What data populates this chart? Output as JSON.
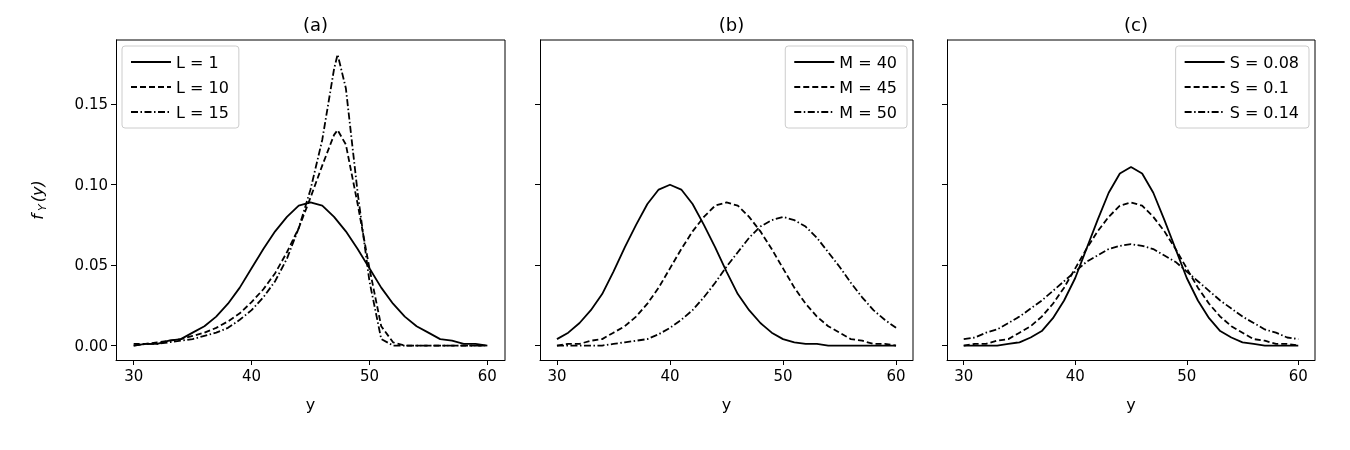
{
  "chart_data": [
    {
      "type": "line",
      "title": "(a)",
      "xlabel": "y",
      "ylabel": "f$_{Y}$(y)",
      "xlim": [
        28.5,
        61.5
      ],
      "xticks": [
        30,
        40,
        50,
        60
      ],
      "ylim": [
        -0.009,
        0.19
      ],
      "yticks": [
        {
          "value": 0,
          "label": "0.00"
        },
        {
          "value": 0.05,
          "label": "0.05"
        },
        {
          "value": 0.1,
          "label": "0.10"
        },
        {
          "value": 0.15,
          "label": "0.15"
        }
      ],
      "grid": false,
      "legend": "top left",
      "marker": "none",
      "x": [
        30,
        31,
        32,
        33,
        34,
        35,
        36,
        37,
        38,
        39,
        40,
        41,
        42,
        43,
        44,
        45,
        46,
        47,
        48,
        49,
        50,
        51,
        52,
        53,
        54,
        55,
        56,
        57,
        58,
        59,
        60
      ],
      "series": [
        {
          "name": "L = 1",
          "color": "#000000",
          "line_style": "solid",
          "values": [
            0.0,
            0.001,
            0.001,
            0.003,
            0.004,
            0.008,
            0.012,
            0.018,
            0.026,
            0.036,
            0.048,
            0.06,
            0.071,
            0.08,
            0.087,
            0.089,
            0.087,
            0.08,
            0.071,
            0.06,
            0.048,
            0.036,
            0.026,
            0.018,
            0.012,
            0.008,
            0.004,
            0.003,
            0.001,
            0.001,
            0.0
          ]
        },
        {
          "name": "L = 10",
          "color": "#000000",
          "line_style": "dashed",
          "x": [
            30,
            31,
            32,
            33,
            34,
            35,
            36,
            37,
            38,
            39,
            40,
            41,
            42,
            43,
            44,
            45,
            46,
            47,
            47.3,
            48,
            49,
            50,
            51,
            52,
            53,
            54,
            55,
            56,
            57,
            58,
            59,
            60
          ],
          "values": [
            0.001,
            0.001,
            0.002,
            0.003,
            0.004,
            0.006,
            0.008,
            0.011,
            0.015,
            0.02,
            0.027,
            0.035,
            0.045,
            0.058,
            0.073,
            0.092,
            0.112,
            0.131,
            0.134,
            0.125,
            0.088,
            0.048,
            0.012,
            0.002,
            0.0,
            0.0,
            0.0,
            0.0,
            0.0,
            0.0,
            0.0,
            0.0
          ]
        },
        {
          "name": "L = 15",
          "color": "#000000",
          "line_style": "dashdot",
          "x": [
            30,
            31,
            32,
            33,
            34,
            35,
            36,
            37,
            38,
            39,
            40,
            41,
            42,
            43,
            44,
            45,
            46,
            47,
            47.3,
            48,
            49,
            50,
            51,
            52,
            53,
            54,
            55,
            56,
            57,
            58,
            59,
            60
          ],
          "values": [
            0.0,
            0.001,
            0.001,
            0.002,
            0.003,
            0.004,
            0.006,
            0.008,
            0.011,
            0.016,
            0.022,
            0.03,
            0.04,
            0.054,
            0.073,
            0.097,
            0.128,
            0.172,
            0.181,
            0.16,
            0.095,
            0.04,
            0.004,
            0.0,
            0.0,
            0.0,
            0.0,
            0.0,
            0.0,
            0.0,
            0.0,
            0.0
          ]
        }
      ]
    },
    {
      "type": "line",
      "title": "(b)",
      "xlabel": "y",
      "xlim": [
        28.5,
        61.5
      ],
      "xticks": [
        30,
        40,
        50,
        60
      ],
      "ylim": [
        -0.009,
        0.19
      ],
      "yticks": [
        {
          "value": 0,
          "label": null
        },
        {
          "value": 0.05,
          "label": null
        },
        {
          "value": 0.1,
          "label": null
        },
        {
          "value": 0.15,
          "label": null
        }
      ],
      "tick_labels": "x",
      "grid": false,
      "legend": "top right",
      "marker": "none",
      "x": [
        30,
        31,
        32,
        33,
        34,
        35,
        36,
        37,
        38,
        39,
        40,
        41,
        42,
        43,
        44,
        45,
        46,
        47,
        48,
        49,
        50,
        51,
        52,
        53,
        54,
        55,
        56,
        57,
        58,
        59,
        60
      ],
      "series": [
        {
          "name": "M = 40",
          "color": "#000000",
          "line_style": "solid",
          "values": [
            0.004,
            0.008,
            0.014,
            0.022,
            0.032,
            0.046,
            0.061,
            0.075,
            0.088,
            0.097,
            0.1,
            0.097,
            0.088,
            0.075,
            0.061,
            0.046,
            0.032,
            0.022,
            0.014,
            0.008,
            0.004,
            0.002,
            0.001,
            0.001,
            0.0,
            0.0,
            0.0,
            0.0,
            0.0,
            0.0,
            0.0
          ]
        },
        {
          "name": "M = 45",
          "color": "#000000",
          "line_style": "dashed",
          "values": [
            0.0,
            0.001,
            0.001,
            0.003,
            0.004,
            0.008,
            0.012,
            0.018,
            0.026,
            0.036,
            0.048,
            0.06,
            0.071,
            0.08,
            0.087,
            0.089,
            0.087,
            0.08,
            0.071,
            0.06,
            0.048,
            0.036,
            0.026,
            0.018,
            0.012,
            0.008,
            0.004,
            0.003,
            0.001,
            0.001,
            0.0
          ]
        },
        {
          "name": "M = 50",
          "color": "#000000",
          "line_style": "dashdot",
          "values": [
            0.0,
            0.0,
            0.0,
            0.0,
            0.0,
            0.001,
            0.002,
            0.003,
            0.004,
            0.007,
            0.011,
            0.016,
            0.022,
            0.03,
            0.039,
            0.049,
            0.058,
            0.067,
            0.074,
            0.078,
            0.08,
            0.078,
            0.074,
            0.067,
            0.058,
            0.049,
            0.039,
            0.03,
            0.022,
            0.016,
            0.011
          ]
        }
      ]
    },
    {
      "type": "line",
      "title": "(c)",
      "xlabel": "y",
      "xlim": [
        28.5,
        61.5
      ],
      "xticks": [
        30,
        40,
        50,
        60
      ],
      "ylim": [
        -0.009,
        0.19
      ],
      "yticks": [
        {
          "value": 0,
          "label": null
        },
        {
          "value": 0.05,
          "label": null
        },
        {
          "value": 0.1,
          "label": null
        },
        {
          "value": 0.15,
          "label": null
        }
      ],
      "tick_labels": "x",
      "grid": false,
      "legend": "top right",
      "marker": "none",
      "x": [
        30,
        31,
        32,
        33,
        34,
        35,
        36,
        37,
        38,
        39,
        40,
        41,
        42,
        43,
        44,
        45,
        46,
        47,
        48,
        49,
        50,
        51,
        52,
        53,
        54,
        55,
        56,
        57,
        58,
        59,
        60
      ],
      "series": [
        {
          "name": "S = 0.08",
          "color": "#000000",
          "line_style": "solid",
          "values": [
            0.0,
            0.0,
            0.0,
            0.0,
            0.001,
            0.002,
            0.005,
            0.009,
            0.017,
            0.028,
            0.042,
            0.06,
            0.078,
            0.095,
            0.107,
            0.111,
            0.107,
            0.095,
            0.078,
            0.06,
            0.042,
            0.028,
            0.017,
            0.009,
            0.005,
            0.002,
            0.001,
            0.0,
            0.0,
            0.0,
            0.0
          ]
        },
        {
          "name": "S = 0.1",
          "color": "#000000",
          "line_style": "dashed",
          "values": [
            0.0,
            0.001,
            0.001,
            0.003,
            0.004,
            0.008,
            0.012,
            0.018,
            0.026,
            0.036,
            0.048,
            0.06,
            0.071,
            0.08,
            0.087,
            0.089,
            0.087,
            0.08,
            0.071,
            0.06,
            0.048,
            0.036,
            0.026,
            0.018,
            0.012,
            0.008,
            0.004,
            0.003,
            0.001,
            0.001,
            0.0
          ]
        },
        {
          "name": "S = 0.14",
          "color": "#000000",
          "line_style": "dashdot",
          "values": [
            0.004,
            0.005,
            0.008,
            0.01,
            0.014,
            0.018,
            0.023,
            0.028,
            0.034,
            0.04,
            0.046,
            0.052,
            0.056,
            0.06,
            0.062,
            0.063,
            0.062,
            0.06,
            0.056,
            0.052,
            0.046,
            0.04,
            0.034,
            0.028,
            0.023,
            0.018,
            0.014,
            0.01,
            0.008,
            0.005,
            0.004
          ]
        }
      ]
    }
  ]
}
